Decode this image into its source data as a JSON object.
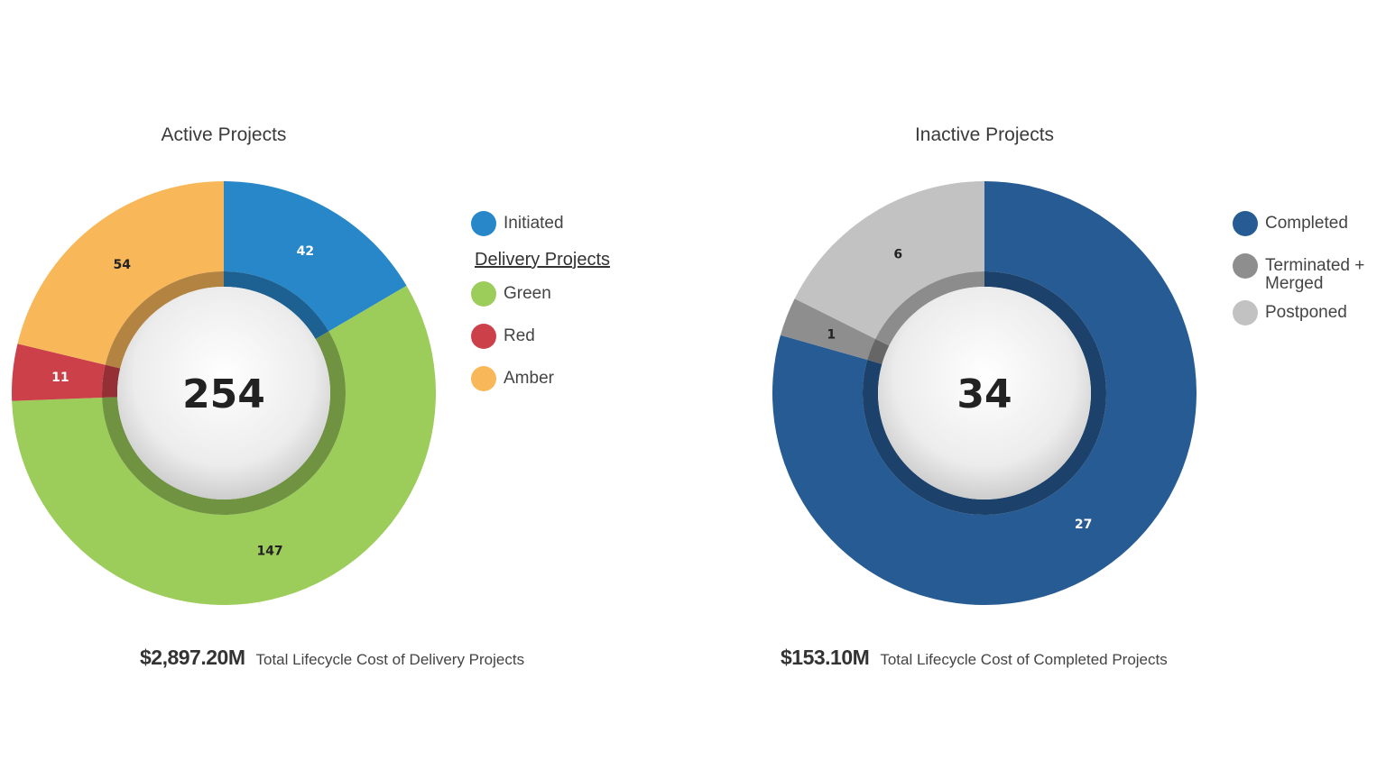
{
  "chart_data": [
    {
      "type": "pie",
      "title": "Active Projects",
      "total": "254",
      "categories": [
        "Initiated",
        "Green",
        "Red",
        "Amber"
      ],
      "values": [
        42,
        147,
        11,
        54
      ],
      "colors": [
        "#2787c9",
        "#9ccc5a",
        "#cc4149",
        "#f8b85a"
      ],
      "legend_heading": "Delivery Projects",
      "legend_position": "right",
      "footer_value": "$2,897.20M",
      "footer_text": "Total Lifecycle Cost of Delivery Projects"
    },
    {
      "type": "pie",
      "title": "Inactive Projects",
      "total": "34",
      "categories": [
        "Completed",
        "Terminated + Merged",
        "Postponed"
      ],
      "values": [
        27,
        1,
        6
      ],
      "colors": [
        "#275b94",
        "#8e8e8e",
        "#c2c2c2"
      ],
      "legend_position": "right",
      "footer_value": "$153.10M",
      "footer_text": "Total Lifecycle Cost of Completed Projects"
    }
  ]
}
